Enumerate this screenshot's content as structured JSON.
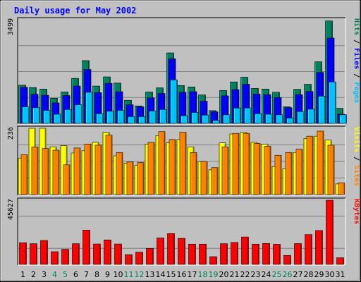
{
  "title": "Daily usage for May 2002",
  "colors": {
    "background": "#c0c0c0",
    "border": "#000000",
    "title": "#0000ff",
    "hits": "#00805c",
    "files": "#0000ff",
    "pages": "#00c0ff",
    "visits": "#ffff00",
    "sites": "#ff8000",
    "kbytes": "#ff0000",
    "weekday_label": "#000000",
    "weekend_label": "#00805c",
    "gridline": "#808080"
  },
  "chart_data": [
    {
      "type": "bar",
      "panel": "hits-files-pages",
      "ymax_label": "3499",
      "ymax": 3499,
      "side_label_parts": [
        {
          "text": "Pages",
          "color_key": "pages"
        },
        {
          "text": " / ",
          "color_key": "border"
        },
        {
          "text": "Files",
          "color_key": "files"
        },
        {
          "text": " / ",
          "color_key": "border"
        },
        {
          "text": "Hits",
          "color_key": "hits"
        }
      ],
      "categories": [
        "1",
        "2",
        "3",
        "4",
        "5",
        "6",
        "7",
        "8",
        "9",
        "10",
        "11",
        "12",
        "13",
        "14",
        "15",
        "16",
        "17",
        "18",
        "19",
        "20",
        "21",
        "22",
        "23",
        "24",
        "25",
        "26",
        "27",
        "28",
        "29",
        "30",
        "31"
      ],
      "series": [
        {
          "name": "Hits",
          "color_key": "hits",
          "values": [
            1290,
            1210,
            1160,
            850,
            1060,
            1520,
            2120,
            1260,
            1570,
            1360,
            780,
            590,
            1060,
            1200,
            2380,
            1280,
            1230,
            960,
            430,
            1110,
            1400,
            1560,
            1180,
            1160,
            1050,
            560,
            1150,
            1320,
            2080,
            3460,
            510
          ]
        },
        {
          "name": "Files",
          "color_key": "files",
          "values": [
            1220,
            980,
            950,
            690,
            940,
            1260,
            1820,
            1040,
            1350,
            1070,
            630,
            560,
            860,
            1010,
            2180,
            1050,
            1070,
            750,
            390,
            930,
            1140,
            1320,
            990,
            970,
            870,
            530,
            970,
            1080,
            1720,
            2880,
            310
          ]
        },
        {
          "name": "Pages",
          "color_key": "pages",
          "values": [
            560,
            530,
            440,
            310,
            470,
            630,
            1050,
            330,
            410,
            440,
            230,
            230,
            420,
            470,
            1470,
            260,
            370,
            280,
            100,
            290,
            520,
            520,
            330,
            310,
            290,
            180,
            400,
            480,
            920,
            1400,
            290
          ]
        }
      ]
    },
    {
      "type": "bar",
      "panel": "visits-sites",
      "ymax_label": "236",
      "ymax": 236,
      "side_label_parts": [
        {
          "text": "Sites",
          "color_key": "sites"
        },
        {
          "text": " / ",
          "color_key": "border"
        },
        {
          "text": "Visits",
          "color_key": "visits"
        }
      ],
      "categories": [
        "1",
        "2",
        "3",
        "4",
        "5",
        "6",
        "7",
        "8",
        "9",
        "10",
        "11",
        "12",
        "13",
        "14",
        "15",
        "16",
        "17",
        "18",
        "19",
        "20",
        "21",
        "22",
        "23",
        "24",
        "25",
        "26",
        "27",
        "28",
        "29",
        "30",
        "31"
      ],
      "series": [
        {
          "name": "Visits",
          "color_key": "visits",
          "values": [
            130,
            236,
            236,
            170,
            174,
            148,
            156,
            186,
            222,
            138,
            112,
            104,
            180,
            210,
            184,
            196,
            170,
            118,
            88,
            184,
            216,
            222,
            186,
            180,
            100,
            92,
            150,
            200,
            208,
            194,
            38
          ]
        },
        {
          "name": "Sites",
          "color_key": "sites",
          "values": [
            142,
            170,
            164,
            158,
            106,
            166,
            180,
            176,
            212,
            150,
            116,
            114,
            186,
            224,
            196,
            222,
            150,
            118,
            96,
            170,
            218,
            218,
            182,
            172,
            140,
            150,
            162,
            208,
            226,
            176,
            42
          ]
        }
      ]
    },
    {
      "type": "bar",
      "panel": "kbytes",
      "ymax_label": "45627",
      "ymax": 45627,
      "side_label_parts": [
        {
          "text": "KBytes",
          "color_key": "kbytes"
        }
      ],
      "categories": [
        "1",
        "2",
        "3",
        "4",
        "5",
        "6",
        "7",
        "8",
        "9",
        "10",
        "11",
        "12",
        "13",
        "14",
        "15",
        "16",
        "17",
        "18",
        "19",
        "20",
        "21",
        "22",
        "23",
        "24",
        "25",
        "26",
        "27",
        "28",
        "29",
        "30",
        "31"
      ],
      "series": [
        {
          "name": "KBytes",
          "color_key": "kbytes",
          "values": [
            15400,
            14700,
            17000,
            9000,
            10700,
            14700,
            24400,
            14500,
            17400,
            14500,
            6900,
            8700,
            11300,
            18800,
            21900,
            18500,
            14400,
            14400,
            5500,
            14700,
            15600,
            19500,
            14400,
            14900,
            14300,
            6400,
            14800,
            21200,
            24100,
            45627,
            4700
          ]
        }
      ]
    }
  ],
  "x_labels": [
    {
      "text": "1",
      "weekend": false
    },
    {
      "text": "2",
      "weekend": false
    },
    {
      "text": "3",
      "weekend": false
    },
    {
      "text": "4",
      "weekend": true
    },
    {
      "text": "5",
      "weekend": true
    },
    {
      "text": "6",
      "weekend": false
    },
    {
      "text": "7",
      "weekend": false
    },
    {
      "text": "8",
      "weekend": false
    },
    {
      "text": "9",
      "weekend": false
    },
    {
      "text": "10",
      "weekend": false
    },
    {
      "text": "11",
      "weekend": true
    },
    {
      "text": "12",
      "weekend": true
    },
    {
      "text": "13",
      "weekend": false
    },
    {
      "text": "14",
      "weekend": false
    },
    {
      "text": "15",
      "weekend": false
    },
    {
      "text": "16",
      "weekend": false
    },
    {
      "text": "17",
      "weekend": false
    },
    {
      "text": "18",
      "weekend": true
    },
    {
      "text": "19",
      "weekend": true
    },
    {
      "text": "20",
      "weekend": false
    },
    {
      "text": "21",
      "weekend": false
    },
    {
      "text": "22",
      "weekend": false
    },
    {
      "text": "23",
      "weekend": false
    },
    {
      "text": "24",
      "weekend": false
    },
    {
      "text": "25",
      "weekend": true
    },
    {
      "text": "26",
      "weekend": true
    },
    {
      "text": "27",
      "weekend": false
    },
    {
      "text": "28",
      "weekend": false
    },
    {
      "text": "29",
      "weekend": false
    },
    {
      "text": "30",
      "weekend": false
    },
    {
      "text": "31",
      "weekend": false
    }
  ]
}
